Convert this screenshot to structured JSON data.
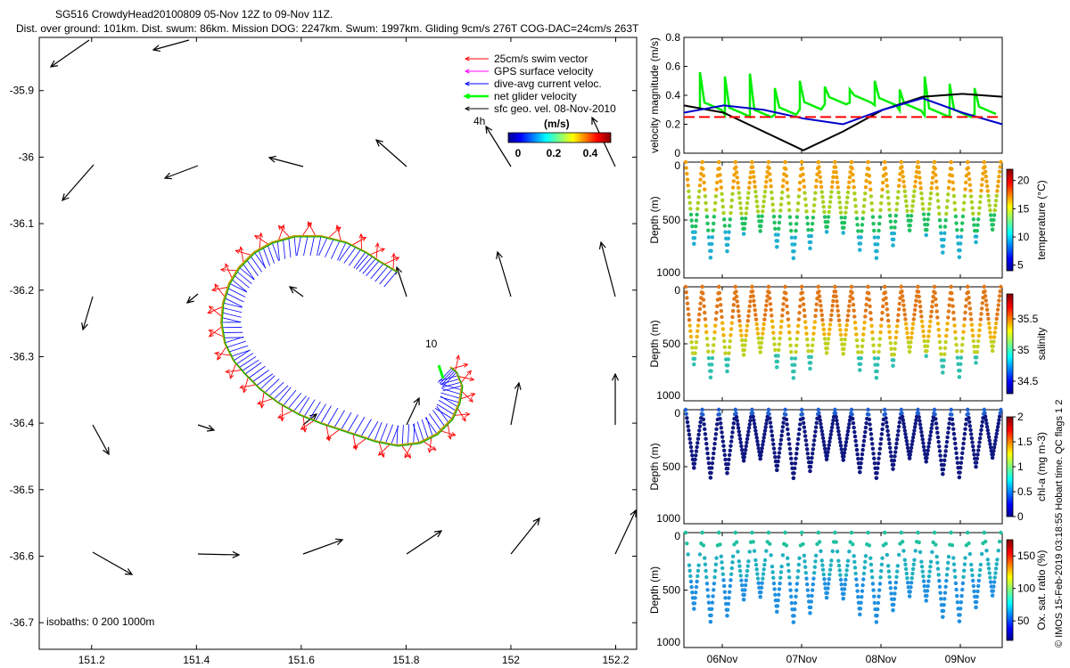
{
  "header": {
    "line1": "SG516 CrowdyHead20100809 05-Nov 12Z to 09-Nov 11Z.",
    "line2": "Dist. over ground: 101km. Dist. swum: 86km. Mission DOG: 2247km. Swum: 1997km. Gliding 9cm/s 276T COG-DAC=24cm/s 263T"
  },
  "map": {
    "x_ticks": [
      "151.2",
      "151.4",
      "151.6",
      "151.8",
      "152",
      "152.2"
    ],
    "y_ticks": [
      "-35.9",
      "-36",
      "-36.1",
      "-36.2",
      "-36.3",
      "-36.4",
      "-36.5",
      "-36.6",
      "-36.7"
    ],
    "xlim": [
      151.1,
      152.24
    ],
    "ylim": [
      -36.74,
      -35.82
    ],
    "isobaths_label": "isobaths: 0   200  1000m",
    "annotation_10": "10",
    "annotation_4h": "4h",
    "legend": [
      {
        "label": "25cm/s swim vector",
        "color": "#ff0000"
      },
      {
        "label": "GPS surface velocity",
        "color": "#ff00ff"
      },
      {
        "label": "dive-avg current veloc.",
        "color": "#0000ff"
      },
      {
        "label": "net glider velocity",
        "color": "#00ff00"
      },
      {
        "label": "sfc geo. vel. 08-Nov-2010",
        "color": "#000000"
      }
    ],
    "colorbar": {
      "title": "(m/s)",
      "ticks": [
        "0",
        "0.2",
        "0.4"
      ],
      "range": [
        0,
        0.5
      ]
    }
  },
  "panels": {
    "velocity": {
      "ylabel": "velocity magnitude (m/s)",
      "ticks": [
        "0",
        "0.2",
        "0.4",
        "0.6",
        "0.8"
      ],
      "ylim": [
        0,
        0.8
      ]
    },
    "temperature": {
      "ylabel": "Depth (m)",
      "depth_ticks": [
        "0",
        "500",
        "1000"
      ],
      "cbar_label": "temperature (°C)",
      "cbar_ticks": [
        "5",
        "10",
        "15",
        "20"
      ],
      "cbar_range": [
        4,
        22
      ]
    },
    "salinity": {
      "ylabel": "Depth (m)",
      "depth_ticks": [
        "0",
        "500",
        "1000"
      ],
      "cbar_label": "salinity",
      "cbar_ticks": [
        "34.5",
        "35",
        "35.5"
      ],
      "cbar_range": [
        34.3,
        35.9
      ]
    },
    "chla": {
      "ylabel": "Depth (m)",
      "depth_ticks": [
        "0",
        "500",
        "1000"
      ],
      "cbar_label": "chl-a (mg m-3)",
      "cbar_ticks": [
        "0",
        "0.5",
        "1",
        "1.5",
        "2"
      ],
      "cbar_range": [
        0,
        2
      ]
    },
    "oxygen": {
      "ylabel": "Depth (m)",
      "depth_ticks": [
        "0",
        "500",
        "1000"
      ],
      "cbar_label": "Ox. sat. ratio (%)",
      "cbar_ticks": [
        "50",
        "100",
        "150"
      ],
      "cbar_range": [
        20,
        175
      ]
    }
  },
  "time_ticks": [
    "06Nov",
    "07Nov",
    "08Nov",
    "09Nov"
  ],
  "credit": "© IMOS 15-Feb-2019 03:18:55 Hobart time. QC flags 1  2",
  "chart_data": {
    "type": "line",
    "velocity_series": [
      {
        "name": "",
        "color": "#000000",
        "x_days": [
          0,
          0.5,
          1,
          1.5,
          2,
          2.5,
          3,
          3.5,
          4
        ],
        "values": [
          0.33,
          0.28,
          0.15,
          0.02,
          0.15,
          0.3,
          0.39,
          0.41,
          0.39
        ]
      },
      {
        "name": "",
        "color": "#0000cc",
        "x_days": [
          0,
          0.5,
          1,
          1.5,
          2,
          2.5,
          3,
          3.5,
          4
        ],
        "values": [
          0.28,
          0.33,
          0.3,
          0.24,
          0.2,
          0.3,
          0.38,
          0.28,
          0.2
        ]
      },
      {
        "name": "",
        "color": "#ff0000",
        "x_days": [
          0,
          4
        ],
        "values": [
          0.25,
          0.25
        ]
      }
    ],
    "green_spikes_peak": [
      0.56,
      0.53,
      0.55,
      0.45,
      0.5,
      0.46,
      0.44,
      0.5,
      0.44,
      0.53,
      0.48,
      0.45
    ]
  }
}
